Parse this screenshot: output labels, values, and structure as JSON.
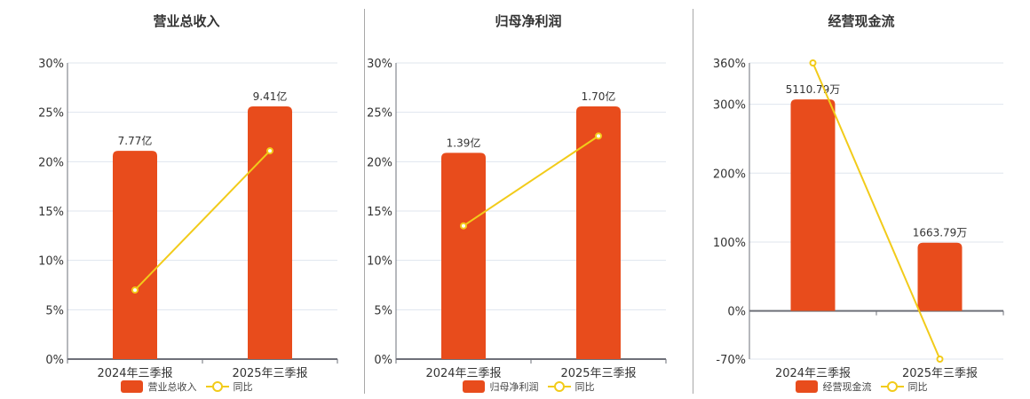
{
  "colors": {
    "bar": "#e84c1c",
    "line": "#f2cb1a",
    "grid": "#dfe5ee",
    "axis": "#6e7079"
  },
  "chart_data": [
    {
      "type": "bar+line",
      "title": "营业总收入",
      "categories": [
        "2024年三季报",
        "2025年三季报"
      ],
      "bar_series": {
        "name": "营业总收入",
        "labels": [
          "7.77亿",
          "9.41亿"
        ],
        "values_yi": [
          7.77,
          9.41
        ],
        "bar_heights_pct": [
          21.1,
          25.6
        ]
      },
      "line_series": {
        "name": "同比",
        "values": [
          7.0,
          21.1
        ]
      },
      "yaxis": {
        "ticks": [
          "0%",
          "5%",
          "10%",
          "15%",
          "20%",
          "25%",
          "30%"
        ],
        "ylim": [
          0,
          30
        ]
      },
      "legend": [
        "营业总收入",
        "同比"
      ],
      "grid": true,
      "legend_position": "bottom"
    },
    {
      "type": "bar+line",
      "title": "归母净利润",
      "categories": [
        "2024年三季报",
        "2025年三季报"
      ],
      "bar_series": {
        "name": "归母净利润",
        "labels": [
          "1.39亿",
          "1.70亿"
        ],
        "values_yi": [
          1.39,
          1.7
        ],
        "bar_heights_pct": [
          20.9,
          25.6
        ]
      },
      "line_series": {
        "name": "同比",
        "values": [
          13.5,
          22.6
        ]
      },
      "yaxis": {
        "ticks": [
          "0%",
          "5%",
          "10%",
          "15%",
          "20%",
          "25%",
          "30%"
        ],
        "ylim": [
          0,
          30
        ]
      },
      "legend": [
        "归母净利润",
        "同比"
      ],
      "grid": true,
      "legend_position": "bottom"
    },
    {
      "type": "bar+line",
      "title": "经营现金流",
      "categories": [
        "2024年三季报",
        "2025年三季报"
      ],
      "bar_series": {
        "name": "经营现金流",
        "labels": [
          "5110.79万",
          "1663.79万"
        ],
        "values_wan": [
          5110.79,
          1663.79
        ],
        "bar_heights_pct": [
          307,
          99
        ]
      },
      "line_series": {
        "name": "同比",
        "values": [
          360,
          -70
        ]
      },
      "yaxis": {
        "ticks": [
          "-70%",
          "0%",
          "100%",
          "200%",
          "300%",
          "360%"
        ],
        "ylim": [
          -70,
          360
        ]
      },
      "legend": [
        "经营现金流",
        "同比"
      ],
      "grid": true,
      "legend_position": "bottom"
    }
  ],
  "panels": [
    {
      "title": "营业总收入",
      "legend_bar": "营业总收入",
      "legend_line": "同比"
    },
    {
      "title": "归母净利润",
      "legend_bar": "归母净利润",
      "legend_line": "同比"
    },
    {
      "title": "经营现金流",
      "legend_bar": "经营现金流",
      "legend_line": "同比"
    }
  ]
}
